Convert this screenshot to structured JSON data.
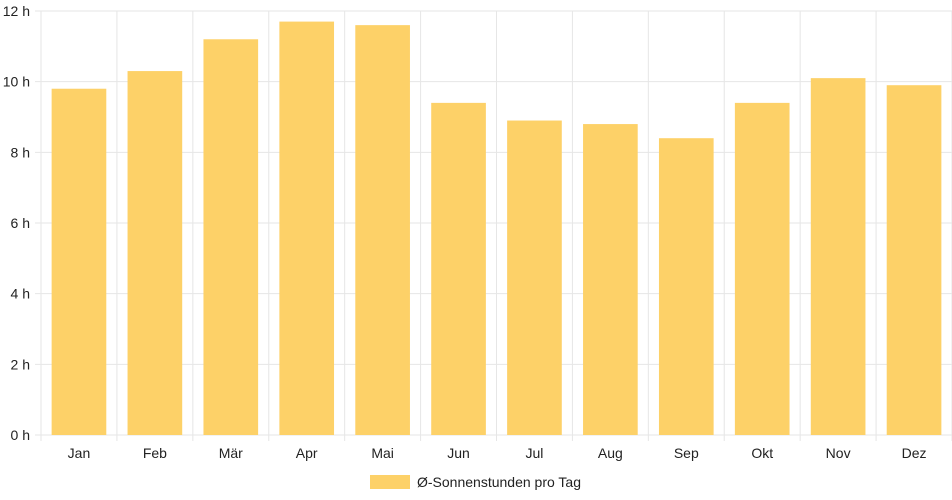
{
  "chart_data": {
    "type": "bar",
    "categories": [
      "Jan",
      "Feb",
      "Mär",
      "Apr",
      "Mai",
      "Jun",
      "Jul",
      "Aug",
      "Sep",
      "Okt",
      "Nov",
      "Dez"
    ],
    "series": [
      {
        "name": "Ø-Sonnenstunden pro Tag",
        "values": [
          9.8,
          10.3,
          11.2,
          11.7,
          11.6,
          9.4,
          8.9,
          8.8,
          8.4,
          9.4,
          10.1,
          9.9
        ],
        "color": "#fdd168"
      }
    ],
    "y_ticks": [
      "0 h",
      "2 h",
      "4 h",
      "6 h",
      "8 h",
      "10 h",
      "12 h"
    ],
    "ylim": [
      0,
      12
    ],
    "grid": true,
    "legend_position": "bottom",
    "gridline_color": "#e6e6e6"
  }
}
